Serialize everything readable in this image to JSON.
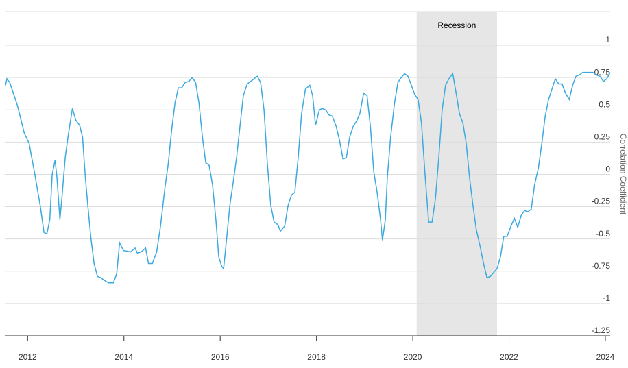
{
  "chart_data": {
    "type": "line",
    "y_axis_label": "Correlation Coefficient",
    "color": "#3aa9e0",
    "grid": true,
    "recession": {
      "label": "Recession",
      "start": 2020.08,
      "end": 2021.75
    },
    "x": [
      2011.54,
      2011.57,
      2011.63,
      2011.72,
      2011.79,
      2011.93,
      2012.03,
      2012.14,
      2012.26,
      2012.34,
      2012.4,
      2012.46,
      2012.51,
      2012.57,
      2012.61,
      2012.67,
      2012.71,
      2012.78,
      2012.85,
      2012.93,
      2013.0,
      2013.08,
      2013.14,
      2013.2,
      2013.25,
      2013.31,
      2013.38,
      2013.45,
      2013.52,
      2013.59,
      2013.68,
      2013.78,
      2013.85,
      2013.91,
      2013.99,
      2014.14,
      2014.23,
      2014.28,
      2014.36,
      2014.45,
      2014.51,
      2014.59,
      2014.68,
      2014.76,
      2014.85,
      2014.92,
      2014.99,
      2015.06,
      2015.13,
      2015.2,
      2015.27,
      2015.35,
      2015.42,
      2015.49,
      2015.56,
      2015.63,
      2015.7,
      2015.77,
      2015.84,
      2015.91,
      2015.97,
      2016.03,
      2016.07,
      2016.13,
      2016.2,
      2016.27,
      2016.34,
      2016.41,
      2016.48,
      2016.56,
      2016.67,
      2016.77,
      2016.84,
      2016.91,
      2016.98,
      2017.05,
      2017.12,
      2017.2,
      2017.25,
      2017.34,
      2017.41,
      2017.48,
      2017.55,
      2017.62,
      2017.69,
      2017.77,
      2017.86,
      2017.92,
      2017.98,
      2018.06,
      2018.12,
      2018.19,
      2018.26,
      2018.33,
      2018.41,
      2018.48,
      2018.55,
      2018.62,
      2018.69,
      2018.76,
      2018.83,
      2018.9,
      2018.98,
      2019.05,
      2019.12,
      2019.19,
      2019.26,
      2019.33,
      2019.37,
      2019.43,
      2019.47,
      2019.54,
      2019.62,
      2019.69,
      2019.76,
      2019.83,
      2019.9,
      2019.97,
      2020.04,
      2020.11,
      2020.18,
      2020.26,
      2020.33,
      2020.4,
      2020.47,
      2020.54,
      2020.61,
      2020.68,
      2020.75,
      2020.83,
      2020.9,
      2020.97,
      2021.04,
      2021.11,
      2021.18,
      2021.25,
      2021.32,
      2021.4,
      2021.47,
      2021.54,
      2021.61,
      2021.68,
      2021.75,
      2021.82,
      2021.89,
      2021.96,
      2022.04,
      2022.11,
      2022.18,
      2022.25,
      2022.32,
      2022.39,
      2022.46,
      2022.53,
      2022.61,
      2022.68,
      2022.75,
      2022.82,
      2022.89,
      2022.96,
      2023.03,
      2023.1,
      2023.17,
      2023.25,
      2023.32,
      2023.39,
      2023.46,
      2023.53,
      2023.64,
      2023.74,
      2023.81,
      2023.89,
      2023.96,
      2024.03,
      2024.1
    ],
    "values": [
      0.69,
      0.74,
      0.71,
      0.61,
      0.53,
      0.32,
      0.24,
      0.02,
      -0.24,
      -0.45,
      -0.46,
      -0.35,
      0,
      0.11,
      -0.03,
      -0.35,
      -0.19,
      0.13,
      0.32,
      0.51,
      0.42,
      0.38,
      0.29,
      -0.03,
      -0.24,
      -0.48,
      -0.69,
      -0.79,
      -0.8,
      -0.82,
      -0.84,
      -0.84,
      -0.77,
      -0.53,
      -0.59,
      -0.6,
      -0.57,
      -0.61,
      -0.6,
      -0.57,
      -0.69,
      -0.69,
      -0.6,
      -0.4,
      -0.11,
      0.08,
      0.34,
      0.55,
      0.67,
      0.67,
      0.71,
      0.72,
      0.75,
      0.71,
      0.55,
      0.29,
      0.09,
      0.07,
      -0.08,
      -0.35,
      -0.64,
      -0.71,
      -0.73,
      -0.51,
      -0.24,
      -0.06,
      0.13,
      0.37,
      0.61,
      0.7,
      0.73,
      0.76,
      0.71,
      0.5,
      0.08,
      -0.24,
      -0.37,
      -0.39,
      -0.44,
      -0.4,
      -0.24,
      -0.16,
      -0.14,
      0.13,
      0.47,
      0.66,
      0.69,
      0.61,
      0.38,
      0.5,
      0.51,
      0.5,
      0.46,
      0.45,
      0.37,
      0.26,
      0.12,
      0.13,
      0.29,
      0.37,
      0.41,
      0.47,
      0.63,
      0.61,
      0.37,
      0.02,
      -0.14,
      -0.35,
      -0.51,
      -0.35,
      -0.03,
      0.29,
      0.55,
      0.71,
      0.75,
      0.78,
      0.76,
      0.69,
      0.62,
      0.58,
      0.4,
      -0.03,
      -0.37,
      -0.37,
      -0.19,
      0.13,
      0.5,
      0.69,
      0.74,
      0.78,
      0.63,
      0.47,
      0.4,
      0.24,
      -0.03,
      -0.24,
      -0.43,
      -0.56,
      -0.69,
      -0.8,
      -0.79,
      -0.76,
      -0.73,
      -0.64,
      -0.48,
      -0.48,
      -0.4,
      -0.34,
      -0.41,
      -0.32,
      -0.28,
      -0.29,
      -0.27,
      -0.08,
      0.05,
      0.24,
      0.45,
      0.58,
      0.66,
      0.74,
      0.7,
      0.7,
      0.63,
      0.58,
      0.69,
      0.76,
      0.77,
      0.79,
      0.79,
      0.79,
      0.77,
      0.76,
      0.72,
      0.74,
      0.79
    ],
    "xlim": [
      2011.54,
      2024.1
    ],
    "xticks": [
      2012,
      2014,
      2016,
      2018,
      2020,
      2022,
      2024
    ],
    "ylim": [
      -1.25,
      1.26
    ],
    "yticks": [
      -1.25,
      -1,
      -0.75,
      -0.5,
      -0.25,
      0,
      0.25,
      0.5,
      0.75,
      1
    ]
  }
}
